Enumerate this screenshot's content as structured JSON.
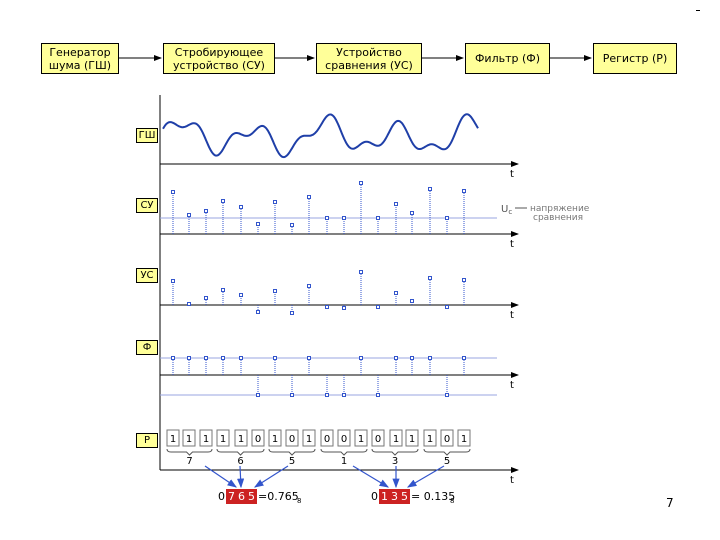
{
  "blocks": [
    "Генератор\nшума (ГШ)",
    "Стробирующее\nустройство (СУ)",
    "Устройство\nсравнения (УС)",
    "Фильтр (Ф)",
    "Регистр (Р)"
  ],
  "row_tags": [
    "ГШ",
    "СУ",
    "УС",
    "Ф",
    "Р"
  ],
  "axis_label": "t",
  "threshold_symbol": "U",
  "threshold_subscript": "c",
  "threshold_label_line1": "напряжение",
  "threshold_label_line2": "сравнения",
  "bits": [
    "1",
    "1",
    "1",
    "1",
    "1",
    "0",
    "1",
    "0",
    "1",
    "0",
    "0",
    "1",
    "0",
    "1",
    "1",
    "1",
    "0",
    "1"
  ],
  "groups": [
    "7",
    "6",
    "5",
    "1",
    "3",
    "5"
  ],
  "result1": {
    "prefix": "0.",
    "digits": [
      "7",
      "6",
      "5"
    ],
    "equals": "=0.765",
    "subscript": "8"
  },
  "result2": {
    "prefix": "0.",
    "digits": [
      "1",
      "3",
      "5"
    ],
    "equals": "= 0.135",
    "subscript": "8"
  },
  "page_number": "7",
  "colors": {
    "block_fill": "#ffff99",
    "wave": "#1f3fa8",
    "dots": "#3355cc",
    "highlight": "#cc2222",
    "threshold": "#9aa6e0"
  }
}
